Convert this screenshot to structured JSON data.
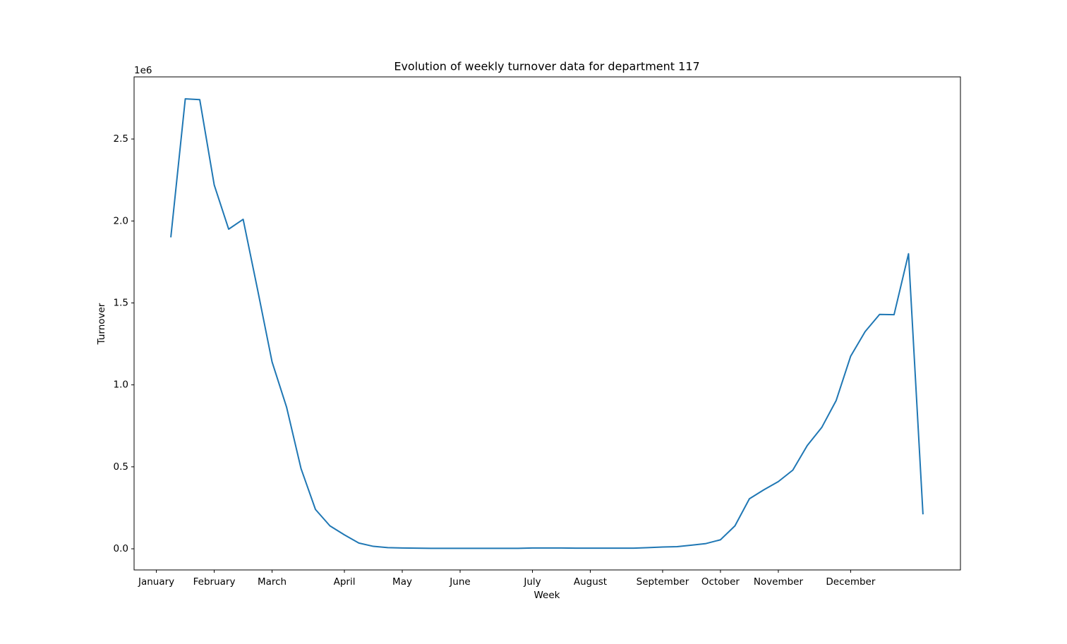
{
  "chart_data": {
    "type": "line",
    "title": "Evolution of weekly turnover data for department 117",
    "x_label": "Week",
    "y_label": "Turnover",
    "y_offset_label": "1e6",
    "x": [
      1,
      2,
      3,
      4,
      5,
      6,
      7,
      8,
      9,
      10,
      11,
      12,
      13,
      14,
      15,
      16,
      17,
      18,
      19,
      20,
      21,
      22,
      23,
      24,
      25,
      26,
      27,
      28,
      29,
      30,
      31,
      32,
      33,
      34,
      35,
      36,
      37,
      38,
      39,
      40,
      41,
      42,
      43,
      44,
      45,
      46,
      47,
      48,
      49,
      50,
      51,
      52,
      53
    ],
    "values": [
      1900000,
      2745000,
      2740000,
      2220000,
      1950000,
      2010000,
      1580000,
      1140000,
      865000,
      490000,
      240000,
      140000,
      85000,
      35000,
      15000,
      7000,
      5000,
      4000,
      3000,
      3000,
      3000,
      3000,
      3000,
      3000,
      3000,
      5000,
      5000,
      5000,
      4000,
      4000,
      4000,
      4000,
      4000,
      7000,
      11000,
      13000,
      22000,
      32000,
      55000,
      140000,
      305000,
      360000,
      410000,
      480000,
      630000,
      740000,
      905000,
      1175000,
      1325000,
      1430000,
      1428000,
      1800000,
      210000
    ],
    "color": "#1f77b4",
    "xlim": [
      -1.54,
      55.59
    ],
    "xticks": [
      {
        "value": 0,
        "label": "January"
      },
      {
        "value": 4,
        "label": "February"
      },
      {
        "value": 8,
        "label": "March"
      },
      {
        "value": 13,
        "label": "April"
      },
      {
        "value": 17,
        "label": "May"
      },
      {
        "value": 21,
        "label": "June"
      },
      {
        "value": 26,
        "label": "July"
      },
      {
        "value": 30,
        "label": "August"
      },
      {
        "value": 35,
        "label": "September"
      },
      {
        "value": 39,
        "label": "October"
      },
      {
        "value": 43,
        "label": "November"
      },
      {
        "value": 48,
        "label": "December"
      }
    ],
    "ylim": [
      -129000,
      2879000
    ],
    "yticks": [
      {
        "value": 0,
        "label": "0.0"
      },
      {
        "value": 500000,
        "label": "0.5"
      },
      {
        "value": 1000000,
        "label": "1.0"
      },
      {
        "value": 1500000,
        "label": "1.5"
      },
      {
        "value": 2000000,
        "label": "2.0"
      },
      {
        "value": 2500000,
        "label": "2.5"
      }
    ],
    "grid": false
  }
}
